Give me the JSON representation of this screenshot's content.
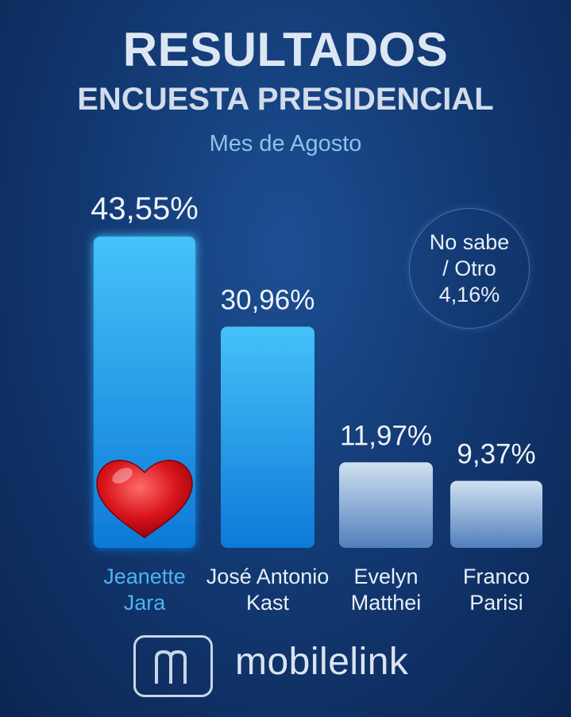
{
  "header": {
    "title": "RESULTADOS",
    "subtitle": "ENCUESTA PRESIDENCIAL",
    "period": "Mes de Agosto"
  },
  "other": {
    "line1": "No sabe",
    "line2": "/ Otro",
    "value": "4,16%"
  },
  "brand": {
    "name": "mobilelink"
  },
  "chart_data": {
    "type": "bar",
    "categories": [
      [
        "Jeanette",
        "Jara"
      ],
      [
        "José Antonio",
        "Kast"
      ],
      [
        "Evelyn",
        "Matthei"
      ],
      [
        "Franco",
        "Parisi"
      ]
    ],
    "values": [
      43.55,
      30.96,
      11.97,
      9.37
    ],
    "value_labels": [
      "43,55%",
      "30,96%",
      "11,97%",
      "9,37%"
    ],
    "highlight_index": 0,
    "highlight_icon": "heart-icon",
    "colors": {
      "bar_bright_top": "#3fbaf5",
      "bar_bright_bottom": "#0e7ddc",
      "bar_pale_top": "#c9dbee",
      "bar_pale_bottom": "#5c89c4",
      "highlight_label": "#4fb3f0",
      "label": "#e8eff8",
      "heart": "#d8141a"
    }
  }
}
